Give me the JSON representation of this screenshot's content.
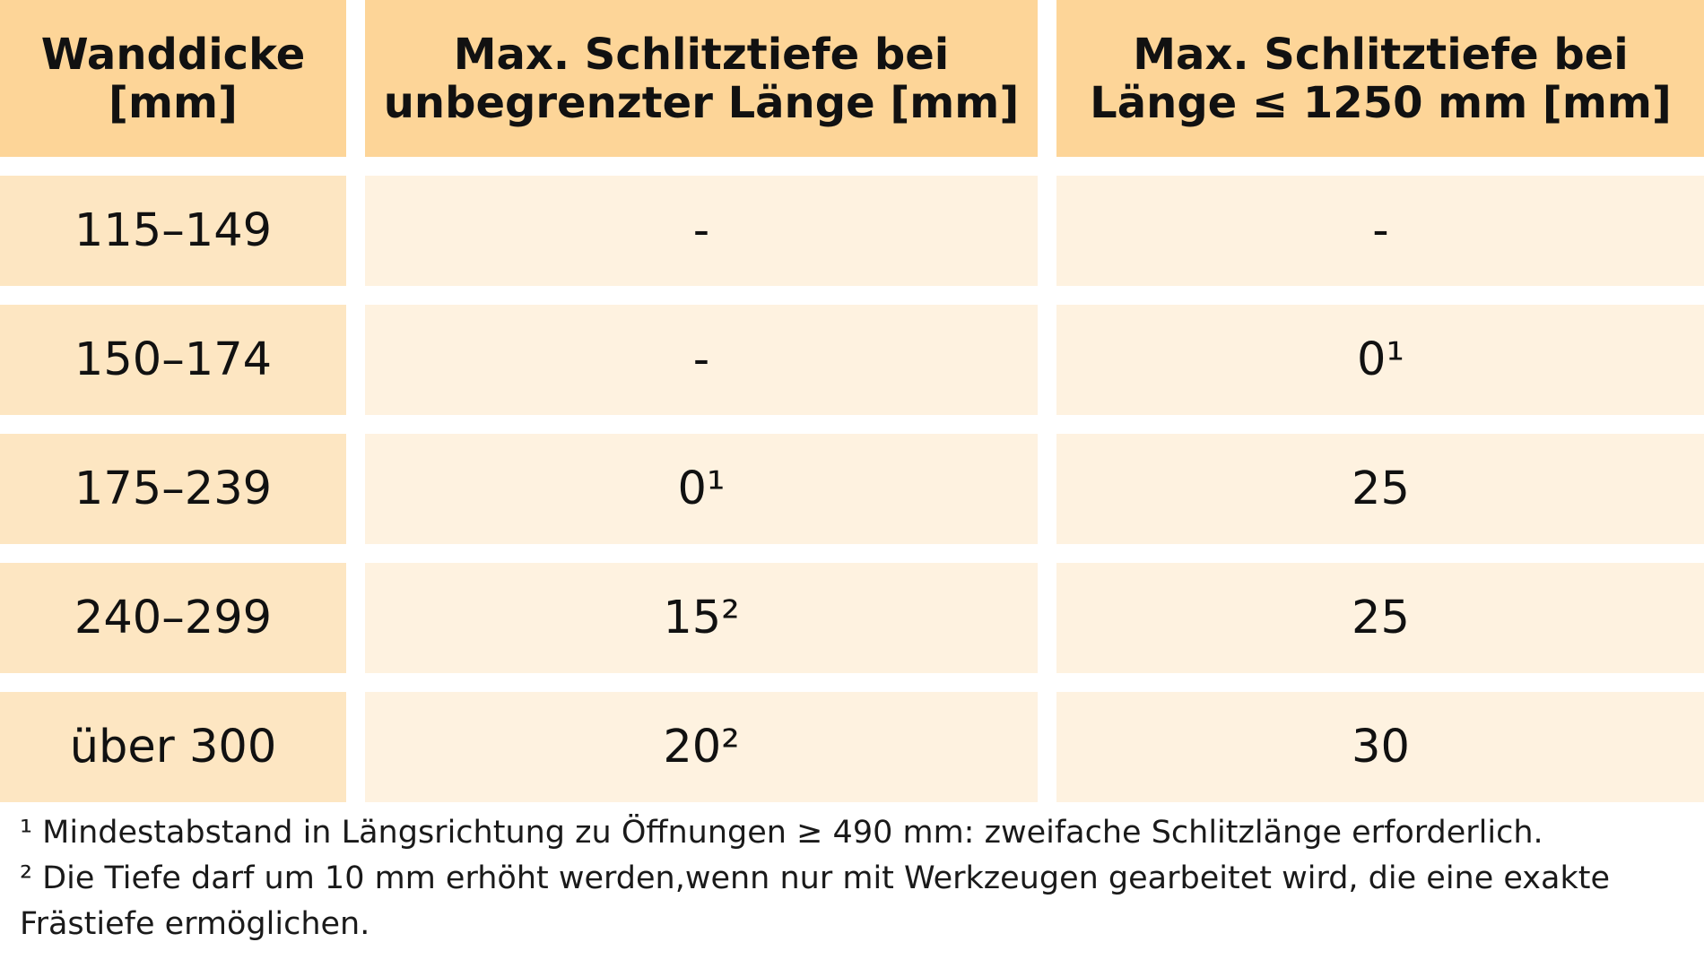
{
  "table": {
    "header": {
      "col1_line1": "Wanddicke",
      "col1_line2": "[mm]",
      "col2_line1": "Max. Schlitztiefe bei",
      "col2_line2": "unbegrenzter Länge [mm]",
      "col3_line1": "Max. Schlitztiefe bei",
      "col3_line2": "Länge ≤ 1250 mm [mm]"
    },
    "rows": [
      {
        "wall": "115–149",
        "unlimited": "-",
        "limited": "-"
      },
      {
        "wall": "150–174",
        "unlimited": "-",
        "limited": "0¹"
      },
      {
        "wall": "175–239",
        "unlimited": "0¹",
        "limited": "25"
      },
      {
        "wall": "240–299",
        "unlimited": "15²",
        "limited": "25"
      },
      {
        "wall": "über 300",
        "unlimited": "20²",
        "limited": "30"
      }
    ]
  },
  "footnotes": {
    "note1": "¹ Mindestabstand in Längsrichtung zu Öffnungen ≥ 490 mm: zweifache Schlitzlänge erforderlich.",
    "note2": "² Die Tiefe darf um 10 mm erhöht werden,wenn nur mit Werkzeugen gearbeitet wird, die eine exakte Frästiefe ermöglichen."
  },
  "colors": {
    "header_bg": "#FDD598",
    "first_col_bg": "#FDE6C2",
    "data_bg": "#FEF2E0"
  }
}
